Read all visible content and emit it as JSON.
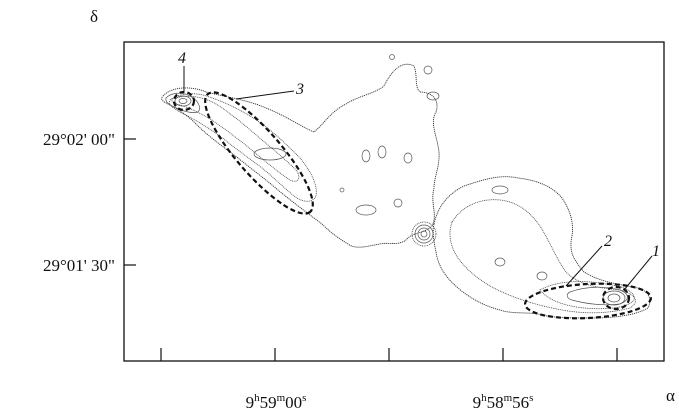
{
  "chart_data": {
    "type": "contour",
    "ylabel": "δ",
    "xlabel": "α",
    "y_ticks": [
      "29°02' 00\"",
      "29°01' 30\""
    ],
    "x_ticks": [
      {
        "h": "9",
        "m": "59",
        "s": "00"
      },
      {
        "h": "9",
        "m": "58",
        "s": "56"
      }
    ],
    "annotations": [
      {
        "label": "1",
        "feature": "hotspot-west"
      },
      {
        "label": "2",
        "feature": "lobe-west"
      },
      {
        "label": "3",
        "feature": "lobe-east"
      },
      {
        "label": "4",
        "feature": "hotspot-east"
      }
    ],
    "grid": false
  },
  "colors": {
    "ink": "#111111",
    "contour": "#333333"
  }
}
